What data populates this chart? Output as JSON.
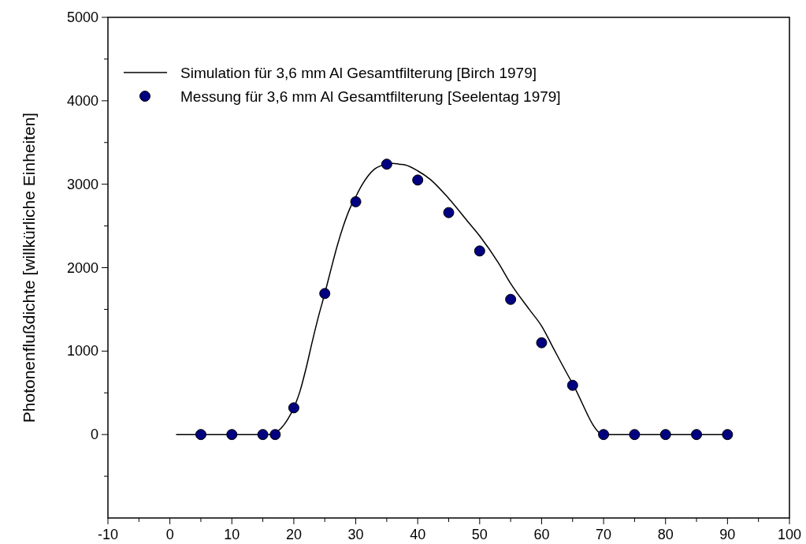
{
  "chart_data": {
    "type": "line",
    "ylabel": "Photonenflußdichte [willkürliche Einheiten]",
    "xlim": [
      -10,
      100
    ],
    "xticks": [
      -10,
      {
        "value": -5,
        "label": null
      },
      0,
      {
        "value": 5,
        "label": null
      },
      10,
      {
        "value": 15,
        "label": null
      },
      20,
      {
        "value": 25,
        "label": null
      },
      30,
      {
        "value": 35,
        "label": null
      },
      40,
      {
        "value": 45,
        "label": null
      },
      50,
      {
        "value": 55,
        "label": null
      },
      60,
      {
        "value": 65,
        "label": null
      },
      70,
      {
        "value": 75,
        "label": null
      },
      80,
      {
        "value": 85,
        "label": null
      },
      90,
      {
        "value": 95,
        "label": null
      },
      100
    ],
    "ylim": [
      -1000,
      5000
    ],
    "yticks": [
      {
        "value": -500,
        "label": null
      },
      0,
      {
        "value": 500,
        "label": null
      },
      1000,
      {
        "value": 1500,
        "label": null
      },
      2000,
      {
        "value": 2500,
        "label": null
      },
      3000,
      {
        "value": 3500,
        "label": null
      },
      4000,
      {
        "value": 4500,
        "label": null
      },
      5000
    ],
    "legend": "top left",
    "grid": false,
    "series": [
      {
        "name": "Simulation für 3,6 mm Al Gesamtfilterung [Birch 1979]",
        "color": "#000000",
        "marker": "none",
        "line_style": "solid",
        "x": [
          1,
          16,
          17,
          18,
          19,
          20,
          21,
          22,
          23,
          24,
          25,
          26,
          27,
          28,
          29,
          30,
          31,
          32,
          33,
          34,
          35,
          36,
          37,
          38,
          40,
          42,
          45,
          48,
          50,
          53,
          55,
          58,
          60,
          62,
          65,
          70,
          75,
          80,
          85,
          90
        ],
        "values": [
          0,
          0,
          20,
          80,
          180,
          320,
          520,
          800,
          1120,
          1420,
          1690,
          1980,
          2260,
          2500,
          2700,
          2850,
          2990,
          3100,
          3180,
          3220,
          3240,
          3250,
          3240,
          3230,
          3160,
          3060,
          2830,
          2560,
          2380,
          2060,
          1810,
          1500,
          1300,
          1020,
          610,
          0,
          0,
          0,
          0,
          0
        ]
      },
      {
        "name": "Messung für 3,6 mm Al Gesamtfilterung [Seelentag 1979]",
        "type": "scatter",
        "color": "#000080",
        "marker": "circle",
        "x": [
          5,
          10,
          15,
          17,
          20,
          25,
          30,
          35,
          40,
          45,
          50,
          55,
          60,
          65,
          70,
          75,
          80,
          85,
          90
        ],
        "values": [
          0,
          0,
          0,
          0,
          320,
          1690,
          2790,
          3240,
          3050,
          2660,
          2200,
          1620,
          1100,
          590,
          0,
          0,
          0,
          0,
          0
        ]
      }
    ]
  }
}
